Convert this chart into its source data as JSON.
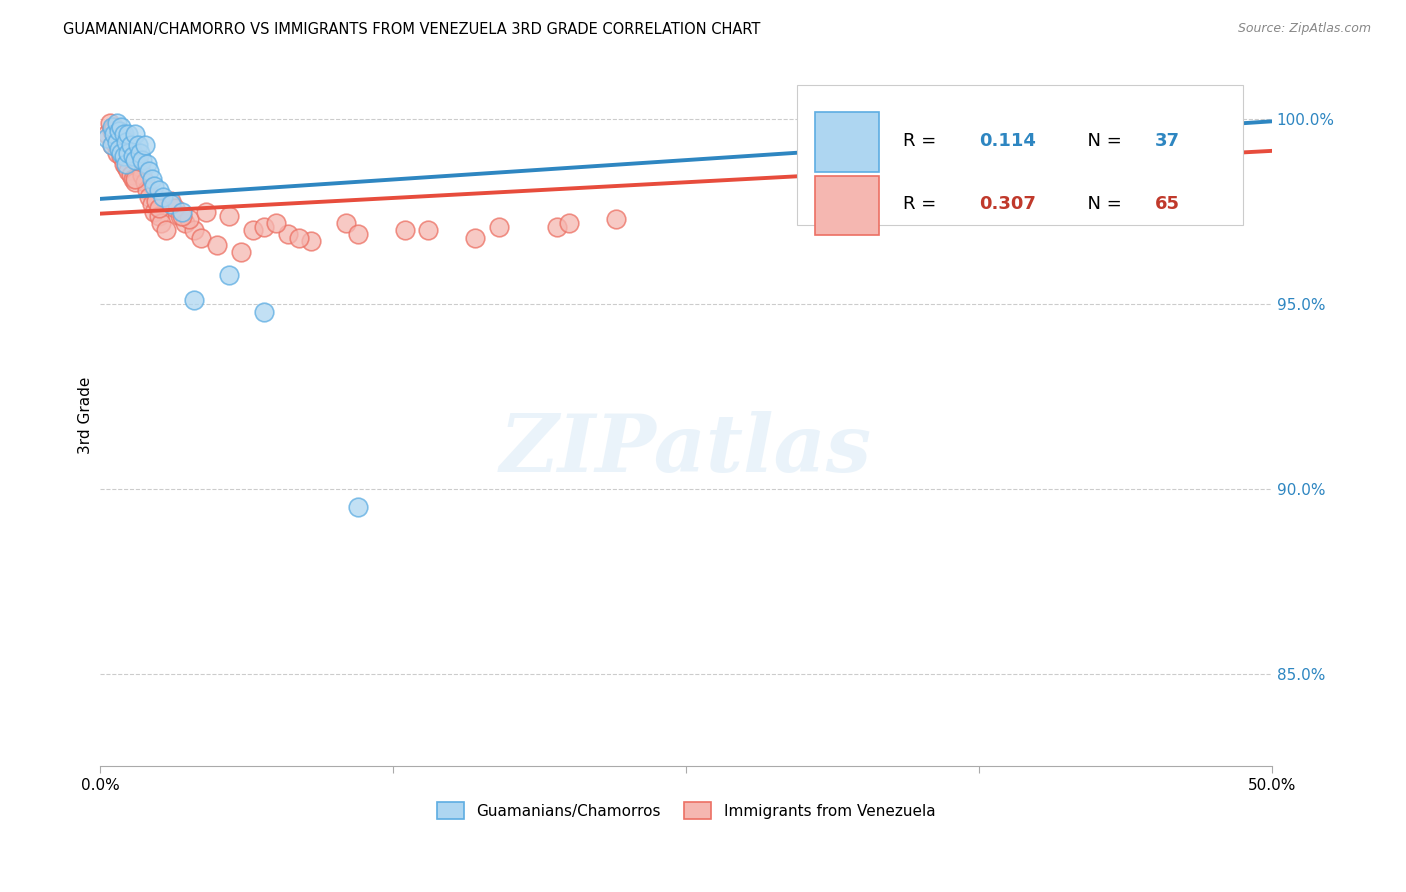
{
  "title": "GUAMANIAN/CHAMORRO VS IMMIGRANTS FROM VENEZUELA 3RD GRADE CORRELATION CHART",
  "source": "Source: ZipAtlas.com",
  "ylabel": "3rd Grade",
  "yaxis_labels": [
    "100.0%",
    "95.0%",
    "90.0%",
    "85.0%"
  ],
  "yaxis_values": [
    1.0,
    0.95,
    0.9,
    0.85
  ],
  "xlim": [
    0.0,
    0.5
  ],
  "ylim": [
    0.825,
    1.015
  ],
  "legend_blue_R": "0.114",
  "legend_blue_N": "37",
  "legend_pink_R": "0.307",
  "legend_pink_N": "65",
  "legend_label_blue": "Guamanians/Chamorros",
  "legend_label_pink": "Immigrants from Venezuela",
  "blue_face_color": "#aed6f1",
  "blue_edge_color": "#5dade2",
  "pink_face_color": "#f5b7b1",
  "pink_edge_color": "#ec7063",
  "blue_line_color": "#2e86c1",
  "pink_line_color": "#e74c3c",
  "watermark_text": "ZIPatlas",
  "blue_line_x": [
    0.0,
    0.5
  ],
  "blue_line_y": [
    0.9785,
    0.9995
  ],
  "pink_line_x": [
    0.0,
    0.5
  ],
  "pink_line_y": [
    0.9745,
    0.9915
  ],
  "blue_scatter_x": [
    0.003,
    0.005,
    0.005,
    0.006,
    0.007,
    0.007,
    0.008,
    0.008,
    0.009,
    0.009,
    0.01,
    0.01,
    0.011,
    0.011,
    0.012,
    0.012,
    0.013,
    0.014,
    0.015,
    0.015,
    0.016,
    0.017,
    0.018,
    0.019,
    0.02,
    0.021,
    0.022,
    0.023,
    0.025,
    0.027,
    0.03,
    0.035,
    0.07,
    0.11,
    0.48,
    0.055,
    0.04
  ],
  "blue_scatter_y": [
    0.995,
    0.998,
    0.993,
    0.996,
    0.999,
    0.994,
    0.997,
    0.992,
    0.998,
    0.991,
    0.996,
    0.99,
    0.994,
    0.988,
    0.996,
    0.991,
    0.993,
    0.99,
    0.996,
    0.989,
    0.993,
    0.991,
    0.989,
    0.993,
    0.988,
    0.986,
    0.984,
    0.982,
    0.981,
    0.979,
    0.977,
    0.975,
    0.948,
    0.895,
    1.001,
    0.958,
    0.951
  ],
  "pink_scatter_x": [
    0.003,
    0.004,
    0.005,
    0.005,
    0.006,
    0.006,
    0.007,
    0.007,
    0.008,
    0.008,
    0.009,
    0.009,
    0.01,
    0.01,
    0.011,
    0.011,
    0.012,
    0.012,
    0.013,
    0.013,
    0.014,
    0.014,
    0.015,
    0.015,
    0.016,
    0.017,
    0.018,
    0.019,
    0.02,
    0.021,
    0.022,
    0.023,
    0.024,
    0.025,
    0.026,
    0.028,
    0.03,
    0.032,
    0.034,
    0.036,
    0.04,
    0.043,
    0.05,
    0.06,
    0.065,
    0.07,
    0.08,
    0.09,
    0.105,
    0.13,
    0.16,
    0.195,
    0.22,
    0.038,
    0.045,
    0.055,
    0.075,
    0.085,
    0.11,
    0.14,
    0.17,
    0.2,
    0.025,
    0.035,
    0.015
  ],
  "pink_scatter_y": [
    0.996,
    0.999,
    0.997,
    0.993,
    0.998,
    0.994,
    0.996,
    0.991,
    0.997,
    0.992,
    0.996,
    0.99,
    0.995,
    0.988,
    0.994,
    0.987,
    0.993,
    0.986,
    0.992,
    0.985,
    0.991,
    0.984,
    0.99,
    0.983,
    0.989,
    0.987,
    0.985,
    0.983,
    0.981,
    0.979,
    0.977,
    0.975,
    0.978,
    0.974,
    0.972,
    0.97,
    0.978,
    0.976,
    0.974,
    0.972,
    0.97,
    0.968,
    0.966,
    0.964,
    0.97,
    0.971,
    0.969,
    0.967,
    0.972,
    0.97,
    0.968,
    0.971,
    0.973,
    0.973,
    0.975,
    0.974,
    0.972,
    0.968,
    0.969,
    0.97,
    0.971,
    0.972,
    0.976,
    0.974,
    0.984
  ]
}
